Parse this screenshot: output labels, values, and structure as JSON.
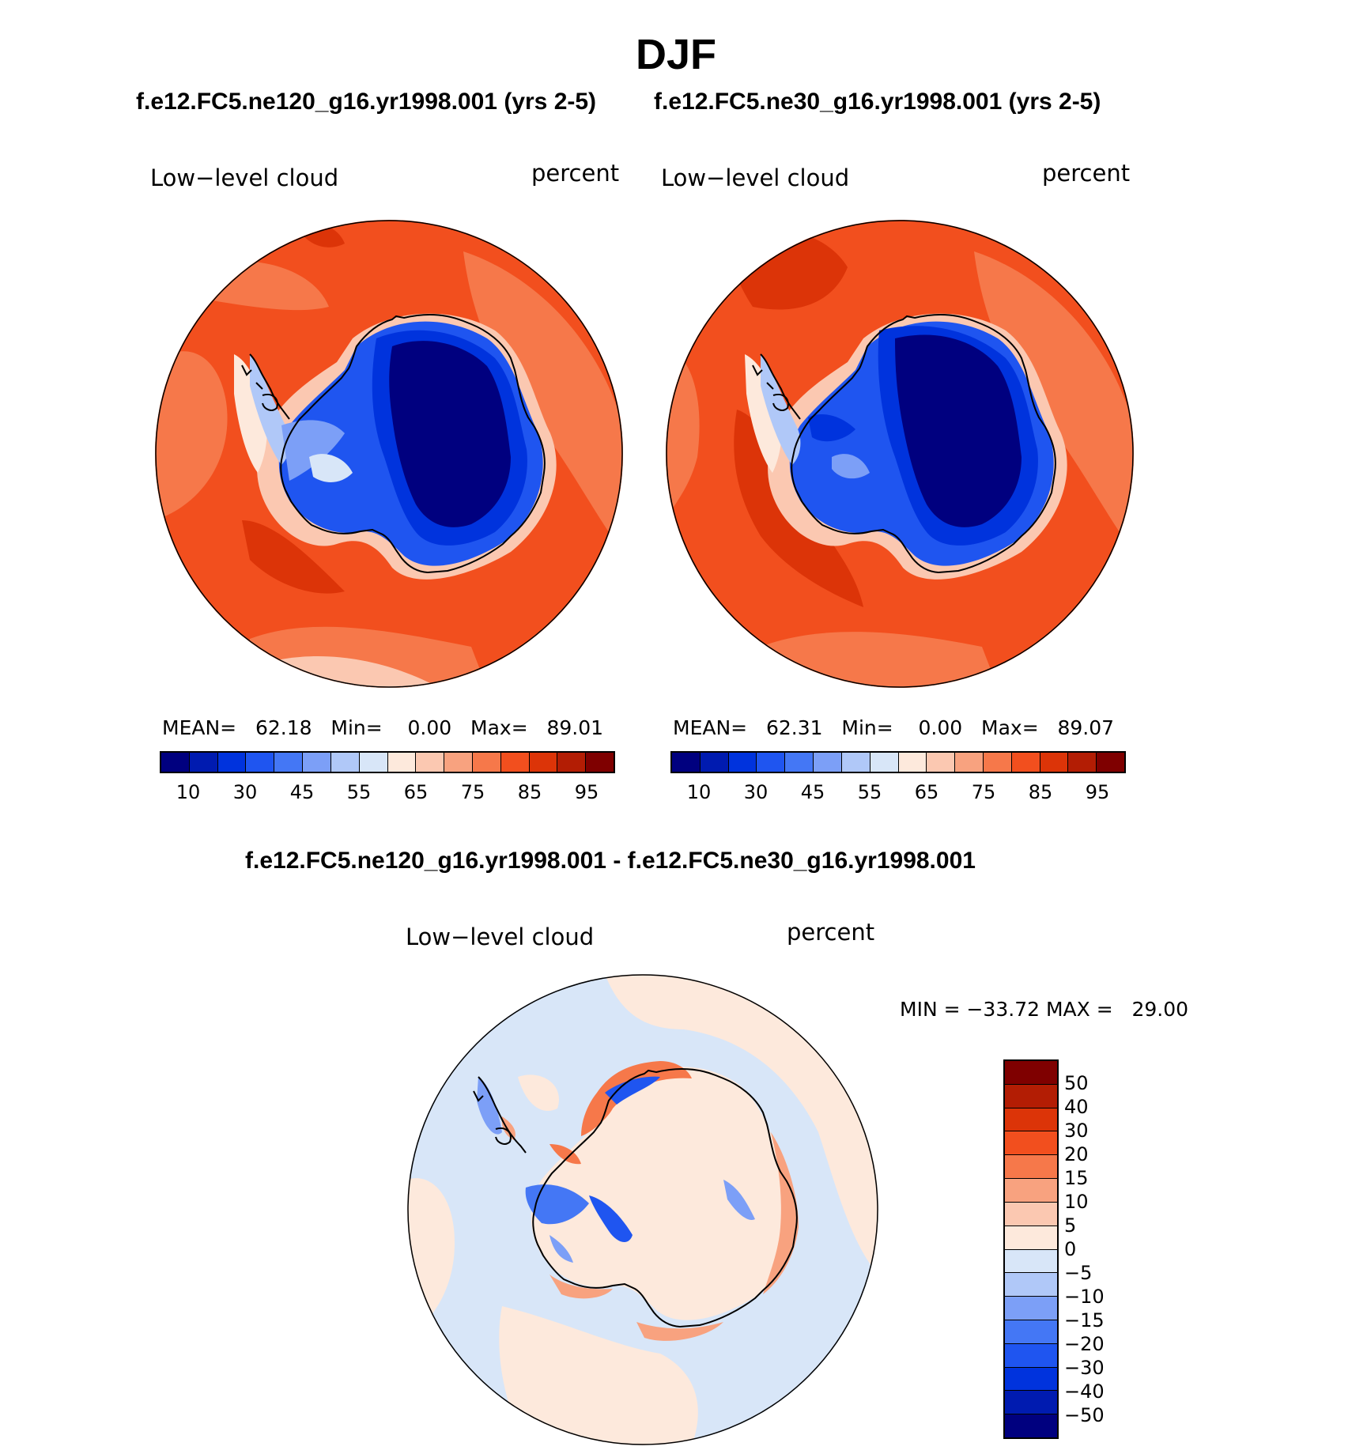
{
  "figure": {
    "title": "DJF",
    "panel_left_title": "f.e12.FC5.ne120_g16.yr1998.001 (yrs 2-5)",
    "panel_right_title": "f.e12.FC5.ne30_g16.yr1998.001 (yrs 2-5)",
    "diff_title": "f.e12.FC5.ne120_g16.yr1998.001 - f.e12.FC5.ne30_g16.yr1998.001"
  },
  "panels": [
    {
      "variable": "Low−level cloud",
      "units": "percent",
      "mean_label": "MEAN=",
      "mean": "62.18",
      "min_label": "Min=",
      "min": "0.00",
      "max_label": "Max=",
      "max": "89.01"
    },
    {
      "variable": "Low−level cloud",
      "units": "percent",
      "mean_label": "MEAN=",
      "mean": "62.31",
      "min_label": "Min=",
      "min": "0.00",
      "max_label": "Max=",
      "max": "89.07"
    }
  ],
  "diff_panel": {
    "variable": "Low−level cloud",
    "units": "percent",
    "minmax_text": "MIN = −33.72 MAX =   29.00"
  },
  "colorbar_abs": {
    "colors": [
      "#00007f",
      "#001bb0",
      "#0033dd",
      "#1f55f0",
      "#4477f5",
      "#7c9ff7",
      "#b0c8f8",
      "#d8e6f8",
      "#fde9dc",
      "#fbc8b1",
      "#f8a27f",
      "#f6784a",
      "#f24f1e",
      "#dc3408",
      "#b31d04",
      "#7f0000"
    ],
    "tick_labels": [
      "10",
      "30",
      "45",
      "55",
      "65",
      "75",
      "85",
      "95"
    ]
  },
  "colorbar_diff": {
    "colors": [
      "#7f0000",
      "#b31d04",
      "#dc3408",
      "#f24f1e",
      "#f6784a",
      "#f8a27f",
      "#fbc8b1",
      "#fde9dc",
      "#d8e6f8",
      "#b0c8f8",
      "#7c9ff7",
      "#4477f5",
      "#1f55f0",
      "#0033dd",
      "#001bb0",
      "#00007f"
    ],
    "tick_labels": [
      "50",
      "40",
      "30",
      "20",
      "15",
      "10",
      "5",
      "0",
      "−5",
      "−10",
      "−15",
      "−20",
      "−30",
      "−40",
      "−50"
    ]
  }
}
